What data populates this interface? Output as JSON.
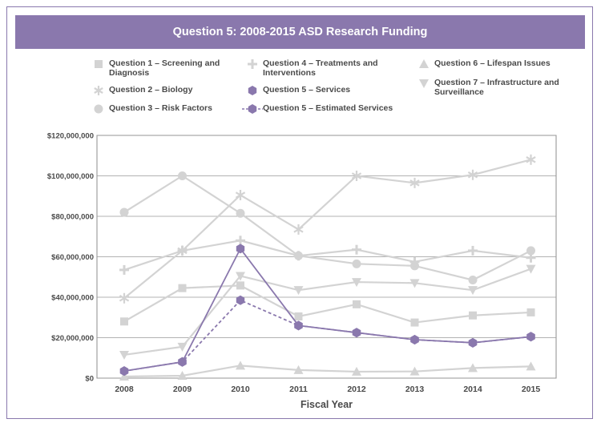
{
  "chart_data": {
    "type": "line",
    "title": "Question 5: 2008-2015 ASD Research Funding",
    "xlabel": "Fiscal Year",
    "ylabel": "",
    "categories": [
      "2008",
      "2009",
      "2010",
      "2011",
      "2012",
      "2013",
      "2014",
      "2015"
    ],
    "ylim": [
      0,
      120000000
    ],
    "y_ticks": [
      0,
      20000000,
      40000000,
      60000000,
      80000000,
      100000000,
      120000000
    ],
    "y_tick_labels": [
      "$0",
      "$20,000,000",
      "$40,000,000",
      "$60,000,000",
      "$80,000,000",
      "$100,000,000",
      "$120,000,000"
    ],
    "grid": "horizontal",
    "series": [
      {
        "name": "Question 1 – Screening and\nDiagnosis",
        "marker": "square",
        "color": "#d3d3d3",
        "dashed": false,
        "values": [
          28000000,
          44500000,
          45800000,
          30500000,
          36500000,
          27500000,
          31000000,
          32500000
        ]
      },
      {
        "name": "Question 2 – Biology",
        "marker": "asterisk",
        "color": "#d3d3d3",
        "dashed": false,
        "values": [
          39500000,
          63000000,
          90500000,
          73500000,
          100000000,
          96500000,
          100500000,
          108000000
        ]
      },
      {
        "name": "Question 3 – Risk Factors",
        "marker": "circle",
        "color": "#d3d3d3",
        "dashed": false,
        "values": [
          82000000,
          100000000,
          81500000,
          60500000,
          56500000,
          55500000,
          48500000,
          63000000
        ]
      },
      {
        "name": "Question 4 – Treatments and\nInterventions",
        "marker": "plus",
        "color": "#d3d3d3",
        "dashed": false,
        "values": [
          53500000,
          63000000,
          68000000,
          60500000,
          63500000,
          57500000,
          63000000,
          59500000
        ]
      },
      {
        "name": "Question 5 – Services",
        "marker": "hexagon",
        "color": "#8a78ad",
        "dashed": false,
        "values": [
          3500000,
          8000000,
          64000000,
          26000000,
          22500000,
          19000000,
          17500000,
          20500000
        ]
      },
      {
        "name": "Question 5 – Estimated Services",
        "marker": "hexagon",
        "color": "#8a78ad",
        "dashed": true,
        "values": [
          3500000,
          8000000,
          38500000,
          26000000,
          22500000,
          19000000,
          17500000,
          20500000
        ]
      },
      {
        "name": "Question 6 – Lifespan Issues",
        "marker": "triangle-up",
        "color": "#d3d3d3",
        "dashed": false,
        "values": [
          800000,
          1200000,
          6200000,
          4000000,
          3200000,
          3300000,
          5000000,
          5800000
        ]
      },
      {
        "name": "Question 7 – Infrastructure and\nSurveillance",
        "marker": "triangle-down",
        "color": "#d3d3d3",
        "dashed": false,
        "values": [
          11500000,
          15500000,
          50500000,
          43500000,
          47500000,
          47000000,
          43500000,
          54000000
        ]
      }
    ]
  }
}
